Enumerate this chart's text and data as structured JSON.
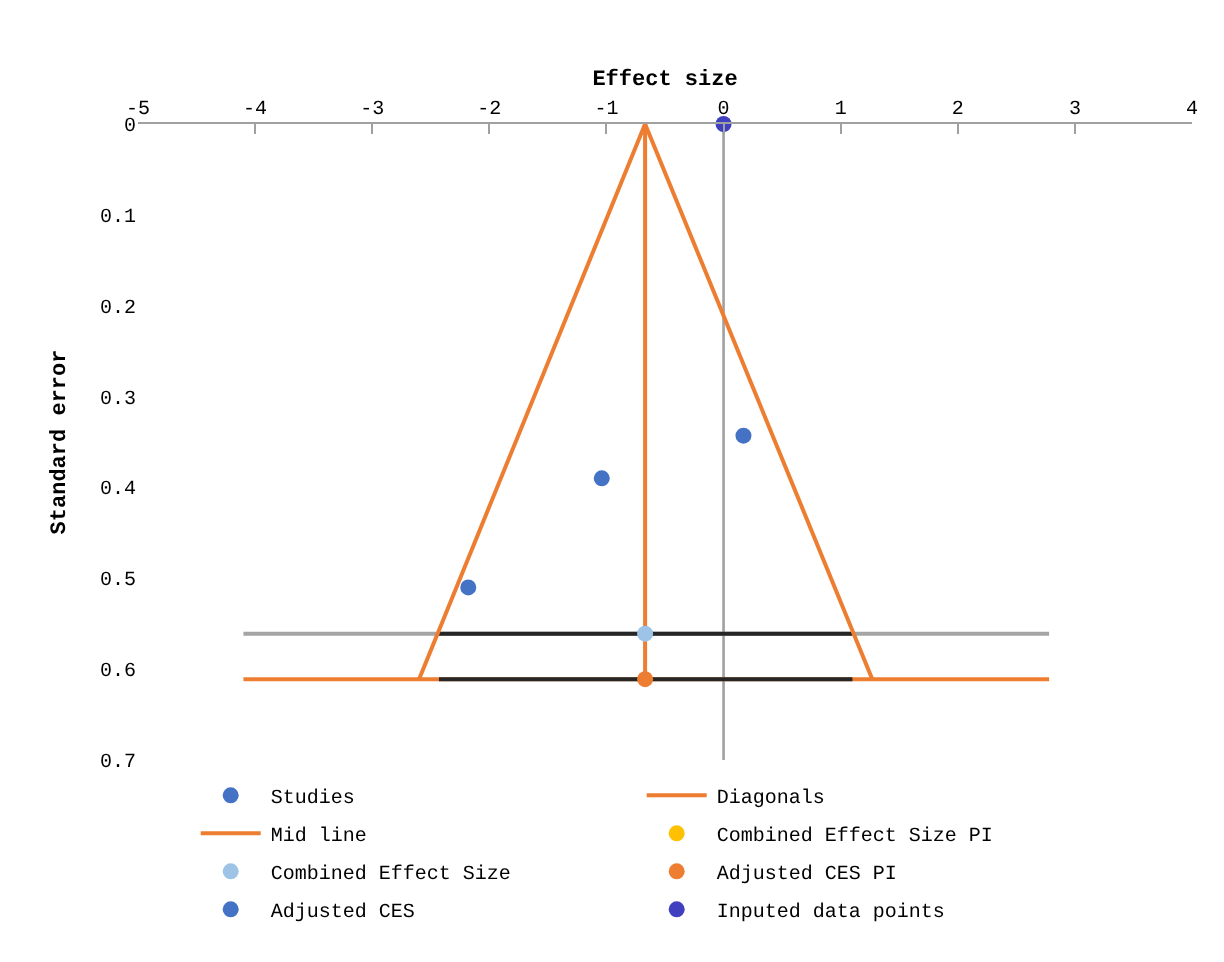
{
  "chart_data": {
    "type": "scatter",
    "xlabel": "Effect size",
    "ylabel": "Standard error",
    "xlim": [
      -5,
      4
    ],
    "xticks": [
      -5,
      -4,
      -3,
      -2,
      -1,
      0,
      1,
      2,
      3,
      4
    ],
    "ylim": [
      0.7,
      0
    ],
    "yticks": [
      0,
      0.1,
      0.2,
      0.3,
      0.4,
      0.5,
      0.6,
      0.7
    ],
    "legend": "bottom",
    "ref_lines": [
      {
        "axis": "x",
        "value": 0,
        "color": "#a0a0a0"
      }
    ],
    "series": [
      {
        "type": "line",
        "marker": "none",
        "color": "#a5a5a5",
        "x": [
          -4.1,
          2.78
        ],
        "values": [
          0.561,
          0.561
        ]
      },
      {
        "type": "line",
        "marker": "none",
        "color": "#ed7d31",
        "x": [
          -4.1,
          2.78
        ],
        "values": [
          0.611,
          0.611
        ]
      },
      {
        "type": "line",
        "marker": "none",
        "color": "#262626",
        "x": [
          -2.43,
          1.1
        ],
        "values": [
          0.561,
          0.561
        ]
      },
      {
        "type": "line",
        "marker": "none",
        "color": "#262626",
        "x": [
          -2.43,
          1.1
        ],
        "values": [
          0.611,
          0.611
        ]
      },
      {
        "name": "Studies",
        "marker": "circle",
        "color": "#4472c4",
        "x": [
          -2.18,
          -1.04,
          0.17
        ],
        "values": [
          0.51,
          0.39,
          0.343
        ]
      },
      {
        "name": "Diagonals",
        "type": "line",
        "marker": "none",
        "color": "#ed7d31",
        "x": [
          -2.6,
          -0.67,
          1.27
        ],
        "values": [
          0.611,
          0,
          0.611
        ]
      },
      {
        "name": "Mid line",
        "type": "line",
        "marker": "none",
        "color": "#ed7d31",
        "x": [
          -0.67,
          -0.67
        ],
        "values": [
          0,
          0.611
        ]
      },
      {
        "name": "Combined Effect Size PI",
        "marker": "circle",
        "color": "#ffc000",
        "x": [
          null
        ],
        "values": [
          null
        ]
      },
      {
        "name": "Combined Effect Size",
        "marker": "circle",
        "color": "#9dc3e6",
        "x": [
          -0.67
        ],
        "values": [
          0.561
        ]
      },
      {
        "name": "Adjusted CES PI",
        "marker": "circle",
        "color": "#ed7d31",
        "x": [
          -0.67
        ],
        "values": [
          0.611
        ]
      },
      {
        "name": "Adjusted CES",
        "marker": "circle",
        "color": "#4472c4",
        "x": [
          null
        ],
        "values": [
          null
        ]
      },
      {
        "name": "Inputed data points",
        "marker": "circle",
        "color": "#3f3fbf",
        "x": [
          0
        ],
        "values": [
          0
        ]
      }
    ]
  }
}
